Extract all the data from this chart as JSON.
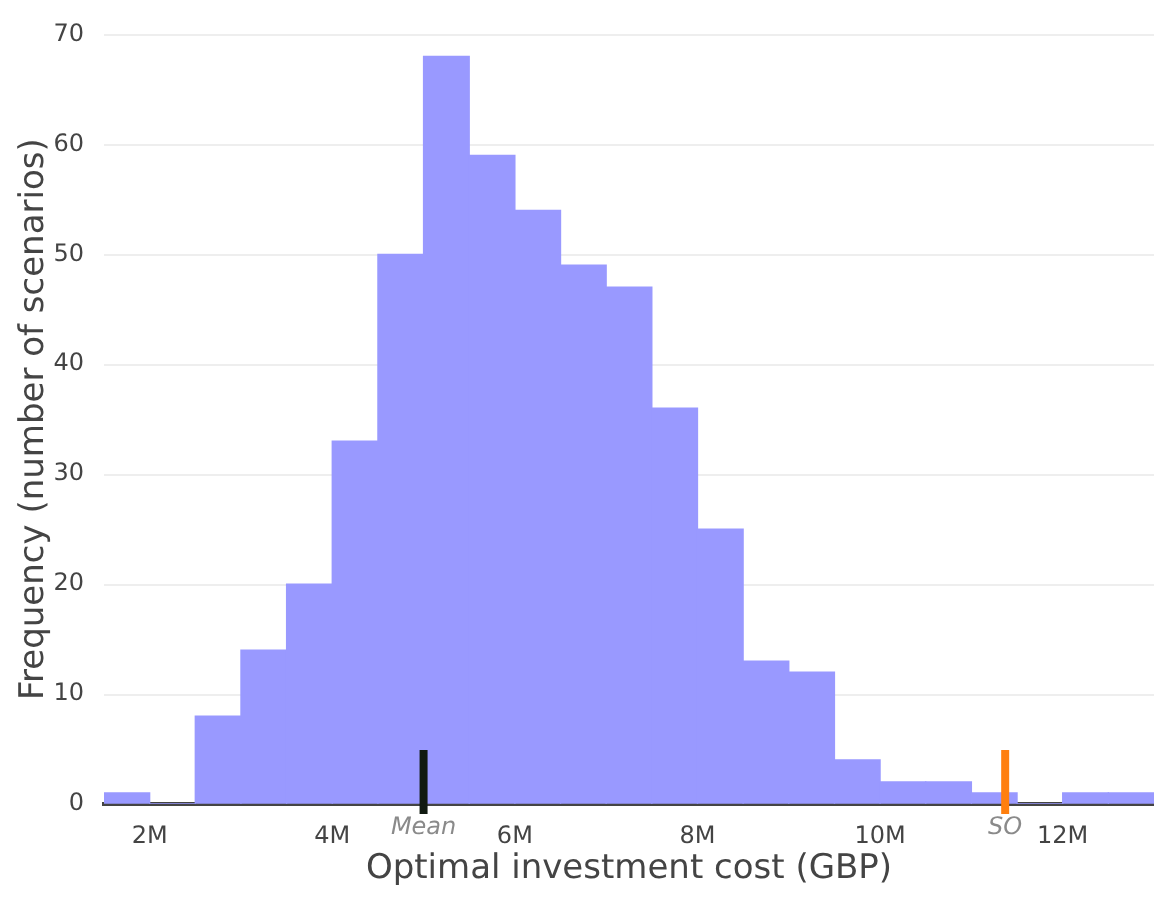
{
  "chart_data": {
    "type": "histogram",
    "xlabel": "Optimal investment cost (GBP)",
    "ylabel": "Frequency (number of scenarios)",
    "bins": [
      1500000,
      2000000,
      2500000,
      3000000,
      3500000,
      4000000,
      4500000,
      5000000,
      5500000,
      6000000,
      6500000,
      7000000,
      7500000,
      8000000,
      8500000,
      9000000,
      9500000,
      10000000,
      10500000,
      11000000,
      11500000,
      12000000,
      12500000,
      13000000
    ],
    "values": [
      1,
      0,
      8,
      14,
      20,
      33,
      50,
      68,
      59,
      54,
      49,
      47,
      36,
      25,
      13,
      12,
      4,
      2,
      2,
      1,
      0,
      1,
      1
    ],
    "color": "#9999ff",
    "xlim": [
      1500000,
      13000000
    ],
    "xticks": [
      {
        "value": 2000000,
        "label": "2M"
      },
      {
        "value": 4000000,
        "label": "4M"
      },
      {
        "value": 6000000,
        "label": "6M"
      },
      {
        "value": 8000000,
        "label": "8M"
      },
      {
        "value": 10000000,
        "label": "10M"
      },
      {
        "value": 12000000,
        "label": "12M"
      }
    ],
    "ylim": [
      0,
      70
    ],
    "yticks": [
      0,
      10,
      20,
      30,
      40,
      50,
      60,
      70
    ],
    "grid": "y",
    "ref_lines": [
      {
        "axis": "x",
        "value": 5000000,
        "label": "Mean",
        "color": "#111a11"
      },
      {
        "axis": "x",
        "value": 11370000,
        "label": "SO",
        "color": "#ff7f0e"
      }
    ]
  }
}
